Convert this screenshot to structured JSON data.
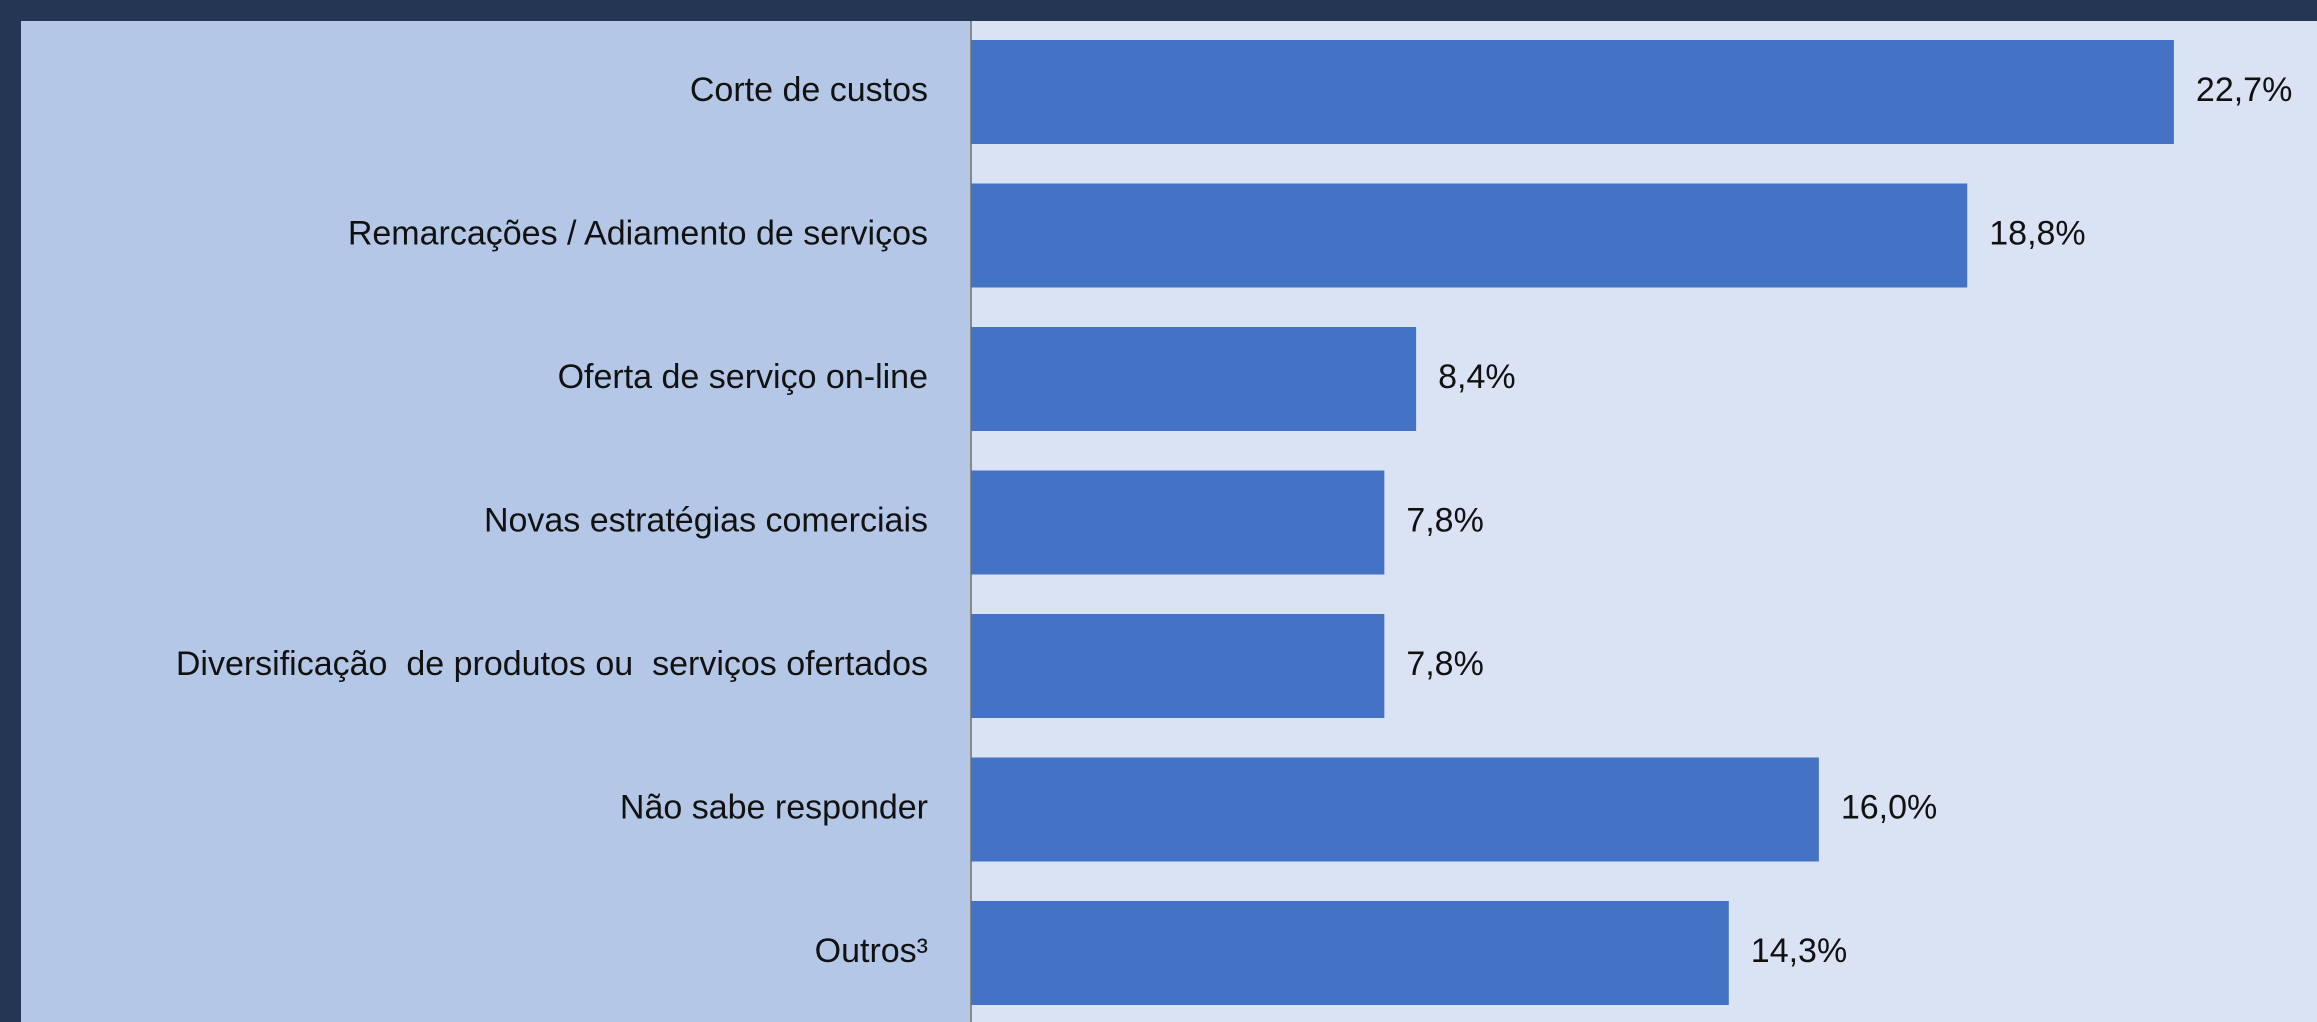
{
  "chart_data": {
    "type": "barh",
    "categories": [
      "Corte de custos",
      "Remarcações / Adiamento de serviços",
      "Oferta de serviço on-line",
      "Novas estratégias comerciais",
      "Diversificação  de produtos ou  serviços ofertados",
      "Não sabe responder",
      "Outros³"
    ],
    "values": [
      22.7,
      18.8,
      8.4,
      7.8,
      7.8,
      16.0,
      14.3
    ],
    "value_labels": [
      "22,7%",
      "18,8%",
      "8,4%",
      "7,8%",
      "7,8%",
      "16,0%",
      "14,3%"
    ],
    "color": "#4472c4",
    "xlim": [
      0,
      25.4
    ]
  }
}
